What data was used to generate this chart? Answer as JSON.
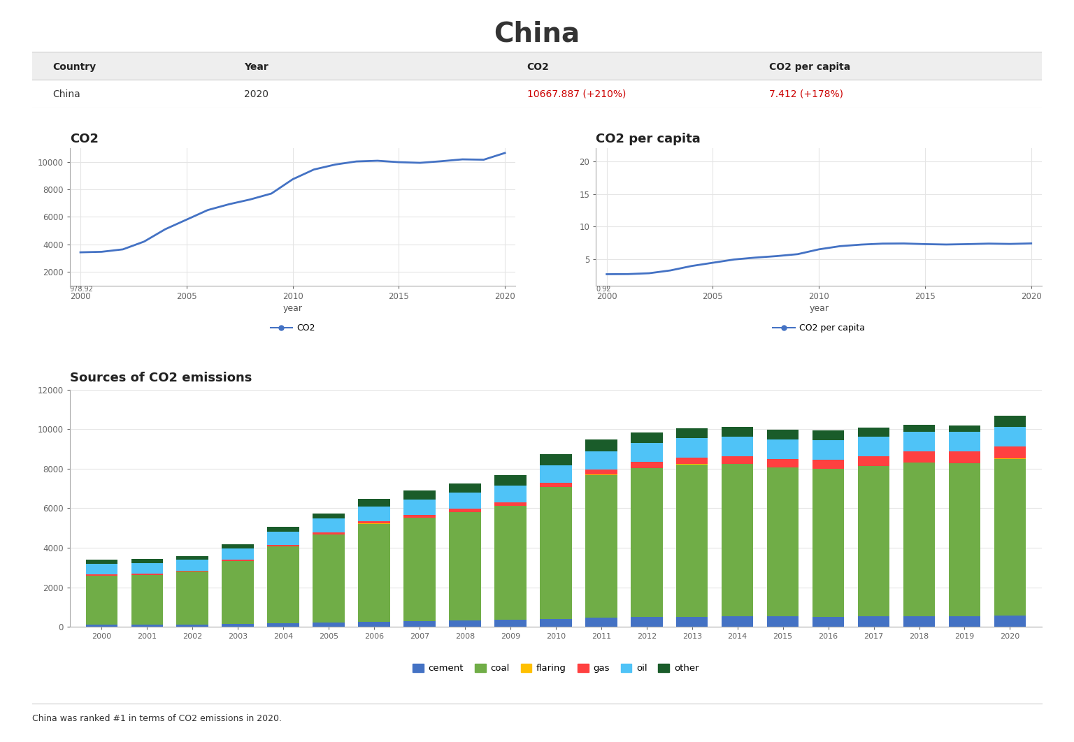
{
  "title": "China",
  "table": {
    "headers": [
      "Country",
      "Year",
      "CO2",
      "CO2 per capita"
    ],
    "row": [
      "China",
      "2020",
      "10667.887 (+210%)",
      "7.412 (+178%)"
    ],
    "header_bg": "#f0f0f0",
    "row_text_colors": [
      "#333333",
      "#333333",
      "#cc0000",
      "#cc0000"
    ]
  },
  "co2_chart": {
    "title": "CO2",
    "xlabel": "year",
    "years": [
      2000,
      2001,
      2002,
      2003,
      2004,
      2005,
      2006,
      2007,
      2008,
      2009,
      2010,
      2011,
      2012,
      2013,
      2014,
      2015,
      2016,
      2017,
      2018,
      2019,
      2020
    ],
    "values": [
      3414.0,
      3452.0,
      3630.0,
      4198.0,
      5103.0,
      5800.0,
      6499.0,
      6924.0,
      7273.0,
      7706.0,
      8745.0,
      9458.0,
      9820.0,
      10048.0,
      10100.0,
      9995.0,
      9947.0,
      10064.0,
      10201.0,
      10175.0,
      10668.0
    ],
    "color": "#4472c4",
    "ymin": 978.92,
    "ymax": 11000,
    "yticks": [
      2000,
      4000,
      6000,
      8000,
      10000
    ],
    "ymin_label": "978.92"
  },
  "co2_per_capita_chart": {
    "title": "CO2 per capita",
    "xlabel": "year",
    "years": [
      2000,
      2001,
      2002,
      2003,
      2004,
      2005,
      2006,
      2007,
      2008,
      2009,
      2010,
      2011,
      2012,
      2013,
      2014,
      2015,
      2016,
      2017,
      2018,
      2019,
      2020
    ],
    "values": [
      2.68,
      2.7,
      2.83,
      3.26,
      3.94,
      4.44,
      4.94,
      5.23,
      5.46,
      5.76,
      6.5,
      6.99,
      7.23,
      7.38,
      7.4,
      7.3,
      7.24,
      7.3,
      7.38,
      7.33,
      7.41
    ],
    "color": "#4472c4",
    "ymin": 0.92,
    "ymax": 22,
    "yticks": [
      5,
      10,
      15,
      20
    ],
    "ymin_label": "0.92"
  },
  "bar_chart": {
    "title": "Sources of CO2 emissions",
    "years": [
      2000,
      2001,
      2002,
      2003,
      2004,
      2005,
      2006,
      2007,
      2008,
      2009,
      2010,
      2011,
      2012,
      2013,
      2014,
      2015,
      2016,
      2017,
      2018,
      2019,
      2020
    ],
    "cement": [
      103,
      108,
      121,
      153,
      204,
      242,
      275,
      298,
      320,
      359,
      415,
      461,
      494,
      523,
      537,
      527,
      516,
      530,
      552,
      558,
      563
    ],
    "coal": [
      2490,
      2520,
      2670,
      3170,
      3870,
      4440,
      4940,
      5230,
      5490,
      5760,
      6650,
      7230,
      7530,
      7700,
      7690,
      7540,
      7480,
      7600,
      7760,
      7720,
      7930
    ],
    "flaring": [
      8,
      8,
      8,
      8,
      9,
      9,
      10,
      10,
      11,
      11,
      12,
      13,
      13,
      14,
      14,
      14,
      14,
      14,
      15,
      15,
      15
    ],
    "gas": [
      44,
      47,
      53,
      60,
      76,
      90,
      108,
      124,
      152,
      173,
      212,
      256,
      298,
      337,
      372,
      410,
      449,
      489,
      534,
      581,
      619
    ],
    "oil": [
      546,
      550,
      545,
      580,
      650,
      690,
      740,
      790,
      820,
      850,
      892,
      930,
      960,
      973,
      992,
      998,
      978,
      990,
      1002,
      1000,
      1003
    ],
    "other": [
      220,
      200,
      190,
      215,
      240,
      280,
      420,
      460,
      475,
      520,
      560,
      570,
      520,
      500,
      490,
      500,
      510,
      440,
      340,
      300,
      538
    ],
    "colors": {
      "cement": "#4472c4",
      "coal": "#70ad47",
      "flaring": "#ffc000",
      "gas": "#ff4040",
      "oil": "#4fc3f7",
      "other": "#1a5c2a"
    },
    "yticks": [
      0,
      2000,
      4000,
      6000,
      8000,
      10000,
      12000
    ],
    "ymax": 12000
  },
  "footer_text": "China was ranked #1 in terms of CO2 emissions in 2020.",
  "bg_color": "#ffffff",
  "text_color": "#333333"
}
